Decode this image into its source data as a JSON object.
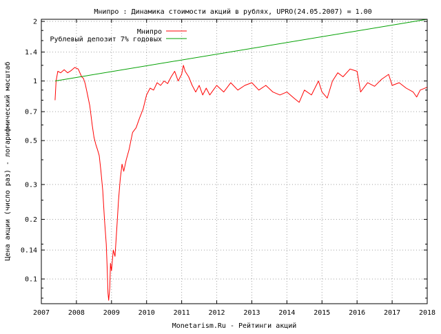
{
  "chart_data": {
    "type": "line",
    "title": "Мнипро : Динамика стоимости акций в рублях, UPRO(24.05.2007) = 1.00",
    "xlabel": "Monetarism.Ru - Рейтинги акций",
    "ylabel": "Цена акции (число раз) - логарифмический масштаб",
    "y_scale": "log",
    "xlim": [
      2007,
      2018
    ],
    "ylim": [
      0.075,
      2.05
    ],
    "x_ticks": [
      "2007",
      "2008",
      "2009",
      "2010",
      "2011",
      "2012",
      "2013",
      "2014",
      "2015",
      "2016",
      "2017",
      "2018"
    ],
    "y_ticks": [
      {
        "value": 0.1,
        "label": "0.1"
      },
      {
        "value": 0.14,
        "label": "0.14"
      },
      {
        "value": 0.2,
        "label": "0.2"
      },
      {
        "value": 0.3,
        "label": "0.3"
      },
      {
        "value": 0.5,
        "label": "0.5"
      },
      {
        "value": 0.7,
        "label": "0.7"
      },
      {
        "value": 1,
        "label": "1"
      },
      {
        "value": 1.4,
        "label": "1.4"
      },
      {
        "value": 2,
        "label": "2"
      }
    ],
    "grid": true,
    "legend_position": "top-left",
    "series": [
      {
        "name": "Мнипро",
        "color": "#ff0000",
        "x": [
          2007.39,
          2007.42,
          2007.47,
          2007.55,
          2007.65,
          2007.75,
          2007.85,
          2007.95,
          2008.05,
          2008.15,
          2008.2,
          2008.25,
          2008.3,
          2008.38,
          2008.45,
          2008.5,
          2008.55,
          2008.6,
          2008.65,
          2008.7,
          2008.75,
          2008.8,
          2008.85,
          2008.88,
          2008.9,
          2008.92,
          2008.95,
          2008.97,
          2009.0,
          2009.05,
          2009.1,
          2009.15,
          2009.2,
          2009.25,
          2009.3,
          2009.35,
          2009.42,
          2009.5,
          2009.6,
          2009.7,
          2009.8,
          2009.9,
          2010.0,
          2010.1,
          2010.2,
          2010.3,
          2010.4,
          2010.5,
          2010.6,
          2010.7,
          2010.8,
          2010.9,
          2011.0,
          2011.05,
          2011.1,
          2011.2,
          2011.3,
          2011.4,
          2011.5,
          2011.6,
          2011.7,
          2011.8,
          2011.9,
          2012.0,
          2012.2,
          2012.4,
          2012.6,
          2012.8,
          2013.0,
          2013.2,
          2013.4,
          2013.6,
          2013.8,
          2014.0,
          2014.2,
          2014.35,
          2014.5,
          2014.7,
          2014.9,
          2015.0,
          2015.15,
          2015.3,
          2015.45,
          2015.6,
          2015.8,
          2016.0,
          2016.1,
          2016.3,
          2016.5,
          2016.7,
          2016.9,
          2017.0,
          2017.2,
          2017.4,
          2017.6,
          2017.7,
          2017.8,
          2018.0
        ],
        "values": [
          0.8,
          1.0,
          1.12,
          1.1,
          1.14,
          1.1,
          1.13,
          1.17,
          1.15,
          1.05,
          1.03,
          0.97,
          0.88,
          0.75,
          0.6,
          0.52,
          0.48,
          0.45,
          0.42,
          0.35,
          0.28,
          0.2,
          0.15,
          0.11,
          0.085,
          0.078,
          0.09,
          0.12,
          0.11,
          0.14,
          0.13,
          0.18,
          0.25,
          0.32,
          0.38,
          0.35,
          0.4,
          0.45,
          0.55,
          0.58,
          0.65,
          0.72,
          0.85,
          0.92,
          0.9,
          0.98,
          0.95,
          1.0,
          0.97,
          1.05,
          1.12,
          1.0,
          1.08,
          1.2,
          1.12,
          1.05,
          0.95,
          0.88,
          0.95,
          0.85,
          0.92,
          0.85,
          0.9,
          0.95,
          0.88,
          0.98,
          0.9,
          0.95,
          0.98,
          0.9,
          0.95,
          0.88,
          0.85,
          0.88,
          0.82,
          0.78,
          0.9,
          0.85,
          1.0,
          0.88,
          0.82,
          1.0,
          1.1,
          1.05,
          1.15,
          1.12,
          0.88,
          0.98,
          0.94,
          1.02,
          1.08,
          0.95,
          0.98,
          0.92,
          0.88,
          0.83,
          0.9,
          0.93
        ]
      },
      {
        "name": "Рублевый депозит 7% годовых",
        "color": "#00a000",
        "x": [
          2007.39,
          2018.0
        ],
        "values": [
          1.0,
          2.05
        ]
      }
    ]
  }
}
